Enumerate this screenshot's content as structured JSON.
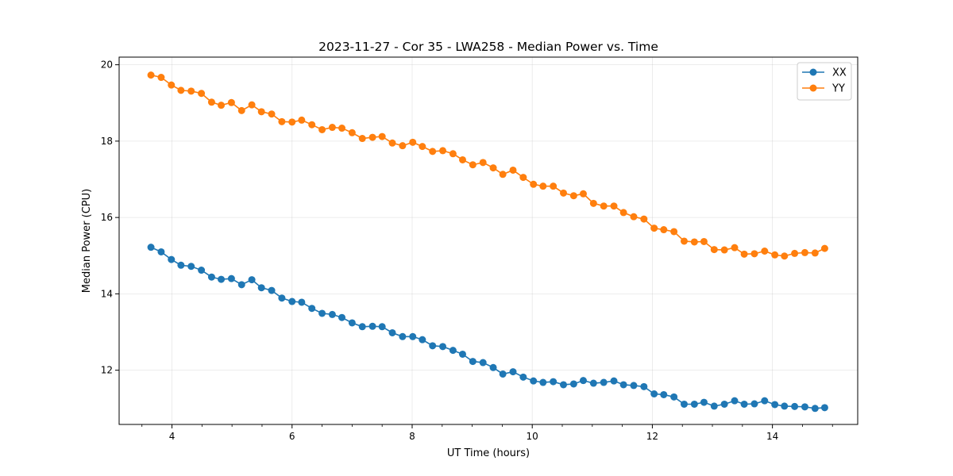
{
  "chart_data": {
    "type": "line",
    "title": "2023-11-27 - Cor 35 - LWA258 - Median Power vs. Time",
    "xlabel": "UT Time (hours)",
    "ylabel": "Median Power (CPU)",
    "xlim": [
      3.12,
      15.42
    ],
    "ylim": [
      10.58,
      20.2
    ],
    "xticks": [
      4,
      6,
      8,
      10,
      12,
      14
    ],
    "xtick_labels": [
      "4",
      "6",
      "8",
      "10",
      "12",
      "14"
    ],
    "yticks": [
      12,
      14,
      16,
      18,
      20
    ],
    "ytick_labels": [
      "12",
      "14",
      "16",
      "18",
      "20"
    ],
    "grid": true,
    "legend_position": "top-right",
    "colors": {
      "XX": "#1f77b4",
      "YY": "#ff7f0e"
    },
    "x": [
      3.65,
      3.82,
      3.99,
      4.15,
      4.32,
      4.49,
      4.66,
      4.82,
      4.99,
      5.16,
      5.33,
      5.49,
      5.66,
      5.83,
      6.0,
      6.16,
      6.33,
      6.5,
      6.67,
      6.83,
      7.0,
      7.17,
      7.34,
      7.5,
      7.67,
      7.84,
      8.01,
      8.17,
      8.34,
      8.51,
      8.68,
      8.84,
      9.01,
      9.18,
      9.35,
      9.51,
      9.68,
      9.85,
      10.02,
      10.18,
      10.35,
      10.52,
      10.69,
      10.85,
      11.02,
      11.19,
      11.36,
      11.52,
      11.69,
      11.86,
      12.03,
      12.19,
      12.36,
      12.53,
      12.7,
      12.86,
      13.03,
      13.2,
      13.37,
      13.53,
      13.7,
      13.87,
      14.04,
      14.2,
      14.37,
      14.54,
      14.71,
      14.87
    ],
    "series": [
      {
        "name": "XX",
        "values": [
          15.22,
          15.1,
          14.9,
          14.75,
          14.72,
          14.62,
          14.44,
          14.38,
          14.4,
          14.24,
          14.37,
          14.16,
          14.09,
          13.89,
          13.8,
          13.78,
          13.62,
          13.49,
          13.46,
          13.38,
          13.24,
          13.14,
          13.15,
          13.14,
          12.98,
          12.88,
          12.88,
          12.8,
          12.64,
          12.62,
          12.52,
          12.42,
          12.23,
          12.2,
          12.07,
          11.9,
          11.96,
          11.82,
          11.72,
          11.68,
          11.7,
          11.62,
          11.64,
          11.73,
          11.66,
          11.68,
          11.72,
          11.62,
          11.6,
          11.57,
          11.38,
          11.36,
          11.3,
          11.11,
          11.11,
          11.16,
          11.06,
          11.11,
          11.2,
          11.11,
          11.12,
          11.2,
          11.1,
          11.06,
          11.05,
          11.04,
          11.0,
          11.02
        ]
      },
      {
        "name": "YY",
        "values": [
          19.73,
          19.67,
          19.47,
          19.33,
          19.31,
          19.25,
          19.02,
          18.94,
          19.01,
          18.8,
          18.95,
          18.77,
          18.71,
          18.51,
          18.5,
          18.55,
          18.43,
          18.3,
          18.36,
          18.34,
          18.22,
          18.07,
          18.1,
          18.12,
          17.95,
          17.88,
          17.97,
          17.86,
          17.73,
          17.75,
          17.67,
          17.51,
          17.38,
          17.44,
          17.3,
          17.13,
          17.24,
          17.05,
          16.87,
          16.82,
          16.82,
          16.64,
          16.57,
          16.62,
          16.37,
          16.3,
          16.3,
          16.13,
          16.02,
          15.96,
          15.72,
          15.68,
          15.63,
          15.38,
          15.36,
          15.37,
          15.16,
          15.15,
          15.21,
          15.04,
          15.05,
          15.12,
          15.02,
          14.99,
          15.06,
          15.08,
          15.07,
          15.19
        ]
      }
    ]
  }
}
